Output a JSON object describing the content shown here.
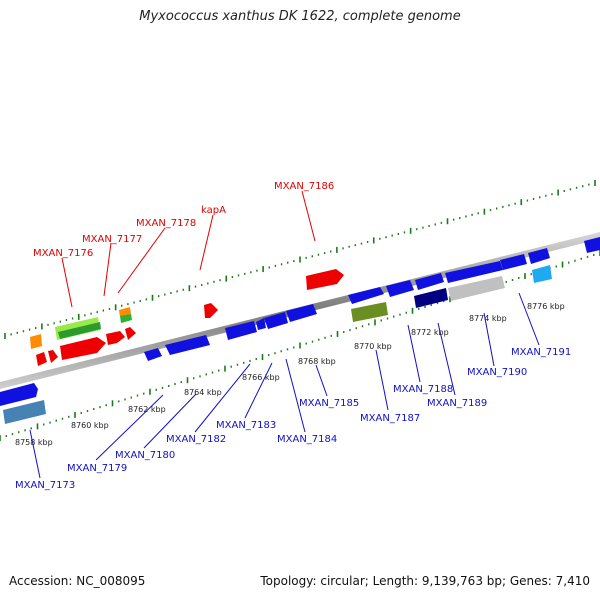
{
  "title": "Myxococcus xanthus DK 1622, complete genome",
  "accession": "Accession: NC_008095",
  "summary": "Topology: circular; Length: 9,139,763 bp; Genes: 7,410",
  "kbp_labels": [
    "8758 kbp",
    "8760 kbp",
    "8762 kbp",
    "8764 kbp",
    "8766 kbp",
    "8768 kbp",
    "8770 kbp",
    "8772 kbp",
    "8774 kbp",
    "8776 kbp"
  ],
  "top_gene_labels": [
    "MXAN_7176",
    "MXAN_7177",
    "MXAN_7178",
    "kapA",
    "MXAN_7186"
  ],
  "bottom_gene_labels": [
    "MXAN_7173",
    "MXAN_7179",
    "MXAN_7180",
    "MXAN_7182",
    "MXAN_7183",
    "MXAN_7184",
    "MXAN_7185",
    "MXAN_7187",
    "MXAN_7188",
    "MXAN_7189",
    "MXAN_7190",
    "MXAN_7191"
  ],
  "colors": {
    "forward": "#ee0000",
    "reverse": "#1010e0",
    "backbone": "#8a8a8a",
    "tick": "#1a7a1a",
    "top_label": "#e00000",
    "bottom_label": "#1010c8"
  }
}
